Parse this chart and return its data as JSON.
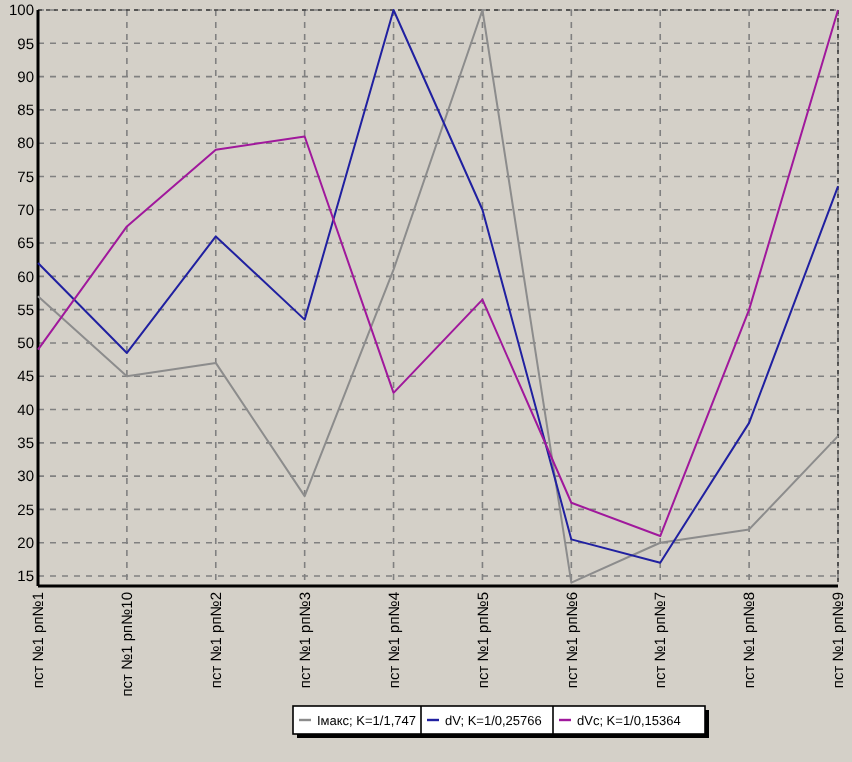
{
  "chart_data": {
    "type": "line",
    "categories": [
      "пст №1 рп№1",
      "пст №1 рп№10",
      "пст №1 рп№2",
      "пст №1 рп№3",
      "пст №1 рп№4",
      "пст №1 рп№5",
      "пст №1 рп№6",
      "пст №1 рп№7",
      "пст №1 рп№8",
      "пст №1 рп№9"
    ],
    "series": [
      {
        "name": "Iмакс; K=1/1,747",
        "color": "#8c8c8c",
        "values": [
          57,
          45,
          47,
          27,
          61,
          100,
          14,
          20,
          22,
          36
        ]
      },
      {
        "name": "dV; K=1/0,25766",
        "color": "#2020a0",
        "values": [
          62,
          48.5,
          66,
          53.5,
          100,
          70,
          20.5,
          17,
          38,
          73.5
        ]
      },
      {
        "name": "dVc; K=1/0,15364",
        "color": "#a0189c",
        "values": [
          49,
          67.5,
          79,
          81,
          42.5,
          56.5,
          26,
          21,
          55,
          100
        ]
      }
    ],
    "ylim": [
      13.5,
      100
    ],
    "yticks": [
      15,
      20,
      25,
      30,
      35,
      40,
      45,
      50,
      55,
      60,
      65,
      70,
      75,
      80,
      85,
      90,
      95,
      100
    ],
    "grid": true,
    "legend": "bottom",
    "line_style": "solid",
    "marker": "none"
  }
}
